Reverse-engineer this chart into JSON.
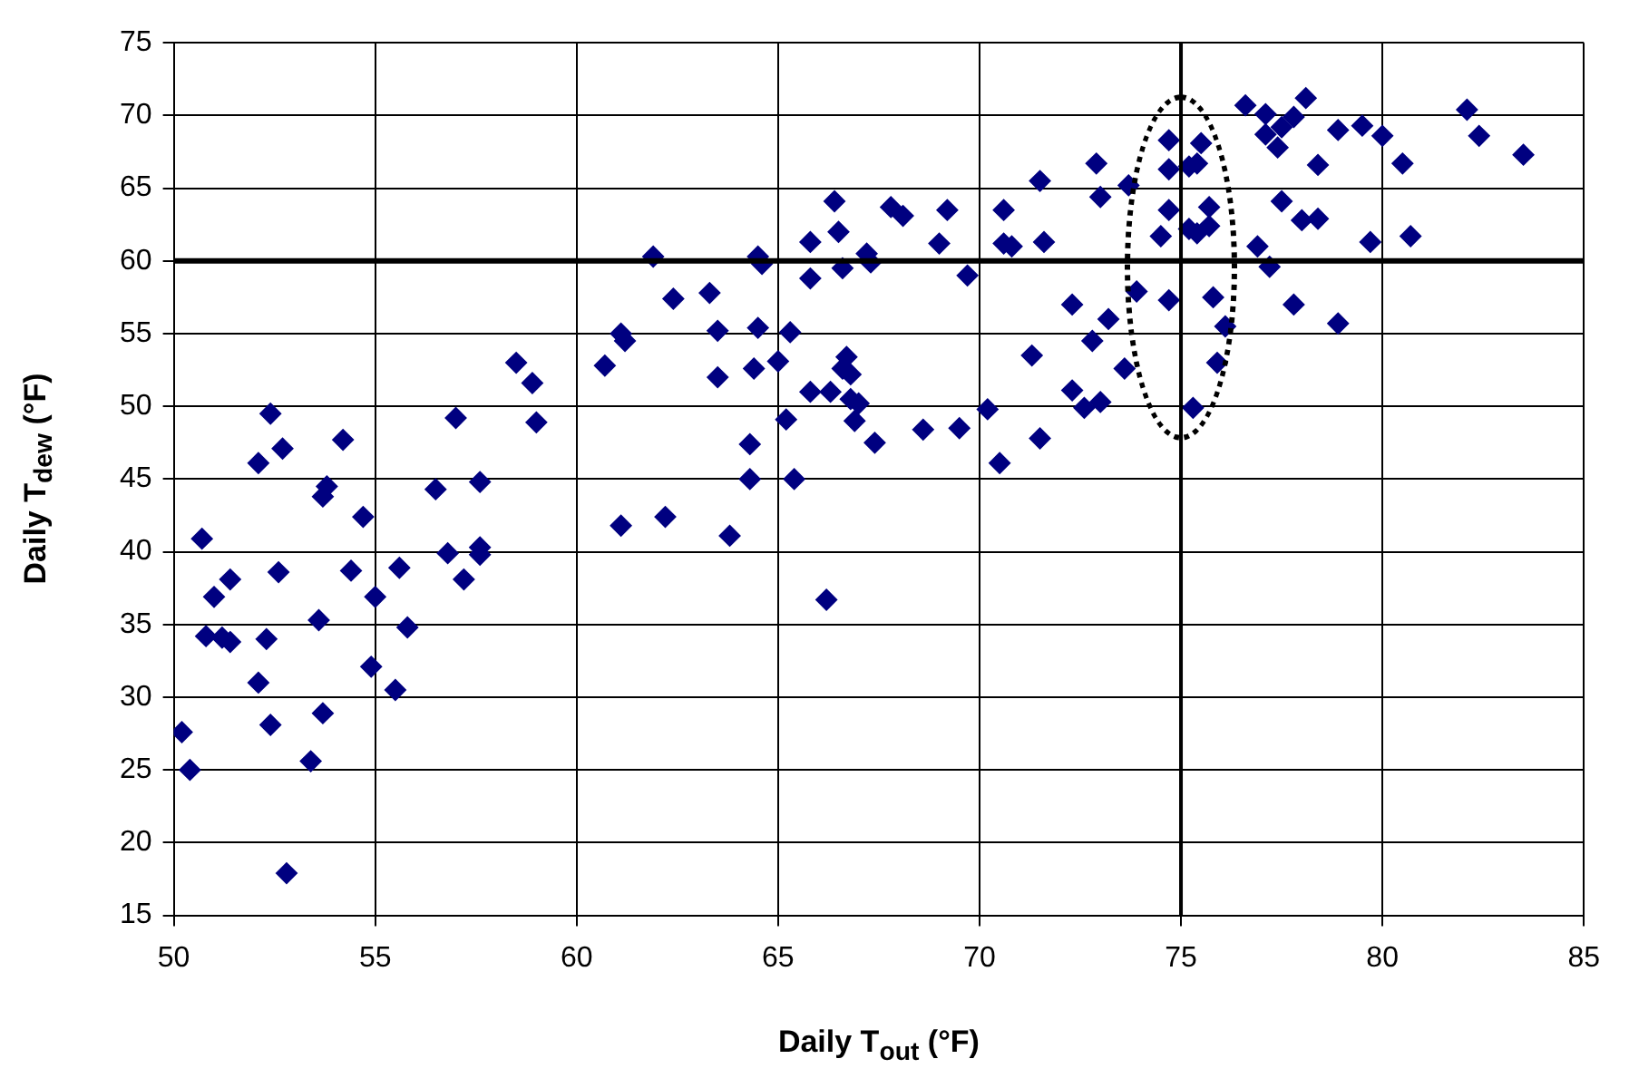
{
  "chart_data": {
    "type": "scatter",
    "xlabel": "Daily T$_{out}$  (°F)",
    "ylabel": "Daily T$_{dew}$  (°F)",
    "xlim": [
      50,
      85
    ],
    "xticks": [
      50,
      55,
      60,
      65,
      70,
      75,
      80,
      85
    ],
    "ylim": [
      15,
      75
    ],
    "yticks": [
      15,
      20,
      25,
      30,
      35,
      40,
      45,
      50,
      55,
      60,
      65,
      70,
      75
    ],
    "grid": true,
    "legend": false,
    "marker": "diamond",
    "ref_lines": [
      {
        "axis": "y",
        "value": 60,
        "color": "#000000"
      },
      {
        "axis": "x",
        "value": 75,
        "color": "#000000"
      }
    ],
    "series": [
      {
        "color": "#000080",
        "x": [
          50.2,
          50.4,
          50.7,
          50.8,
          51.0,
          51.2,
          51.4,
          51.4,
          52.1,
          52.1,
          52.3,
          52.4,
          52.4,
          52.6,
          52.7,
          52.8,
          53.4,
          53.6,
          53.7,
          53.7,
          53.8,
          54.2,
          54.4,
          54.7,
          54.9,
          55.0,
          55.5,
          55.6,
          55.8,
          56.5,
          56.8,
          57.0,
          57.2,
          57.6,
          57.6,
          57.6,
          58.5,
          58.9,
          59.0,
          60.7,
          61.1,
          61.2,
          61.1,
          61.9,
          62.2,
          62.4,
          63.3,
          63.5,
          63.5,
          63.8,
          64.4,
          64.5,
          64.3,
          64.3,
          64.5,
          64.6,
          65.0,
          65.3,
          65.2,
          65.4,
          66.2,
          65.8,
          65.8,
          65.8,
          66.3,
          66.4,
          66.5,
          66.6,
          66.7,
          66.6,
          66.8,
          66.8,
          67.0,
          66.9,
          67.2,
          67.3,
          67.4,
          67.8,
          68.1,
          68.6,
          69.0,
          69.2,
          69.7,
          69.5,
          70.2,
          70.5,
          70.6,
          70.6,
          70.8,
          71.3,
          71.5,
          71.5,
          71.6,
          72.3,
          72.3,
          72.6,
          73.0,
          72.8,
          73.2,
          72.9,
          73.0,
          73.6,
          73.7,
          73.9,
          74.5,
          74.7,
          74.7,
          74.7,
          74.7,
          75.2,
          75.4,
          75.5,
          75.2,
          75.4,
          75.7,
          75.7,
          75.8,
          76.1,
          75.9,
          75.3,
          76.9,
          77.2,
          76.6,
          77.1,
          77.1,
          77.5,
          77.8,
          77.4,
          78.1,
          77.5,
          78.0,
          78.4,
          78.4,
          77.8,
          78.9,
          78.9,
          79.5,
          79.7,
          80.0,
          80.5,
          80.7,
          82.1,
          82.4,
          83.5
        ],
        "values": [
          27.6,
          25.0,
          40.9,
          34.2,
          36.9,
          34.1,
          33.8,
          38.1,
          46.1,
          31.0,
          34.0,
          28.1,
          49.5,
          38.6,
          47.1,
          17.9,
          25.6,
          35.3,
          43.8,
          28.9,
          44.5,
          47.7,
          38.7,
          42.4,
          32.1,
          36.9,
          30.5,
          38.9,
          34.8,
          44.3,
          39.9,
          49.2,
          38.1,
          40.3,
          39.8,
          44.8,
          53.0,
          51.6,
          48.9,
          52.8,
          55.0,
          54.5,
          41.8,
          60.3,
          42.4,
          57.4,
          57.8,
          55.2,
          52.0,
          41.1,
          52.6,
          55.4,
          47.4,
          45.0,
          60.3,
          59.8,
          53.1,
          55.1,
          49.1,
          45.0,
          36.7,
          61.3,
          58.8,
          51.0,
          51.0,
          64.1,
          62.0,
          59.5,
          53.4,
          52.6,
          52.2,
          50.5,
          50.2,
          49.0,
          60.5,
          59.9,
          47.5,
          63.7,
          63.1,
          48.4,
          61.2,
          63.5,
          59.0,
          48.5,
          49.8,
          46.1,
          63.5,
          61.2,
          61.0,
          53.5,
          47.8,
          65.5,
          61.3,
          57.0,
          51.1,
          49.9,
          50.3,
          54.5,
          56.0,
          66.7,
          64.4,
          52.6,
          65.2,
          57.9,
          61.7,
          68.3,
          66.3,
          63.5,
          57.3,
          66.5,
          66.7,
          68.1,
          62.2,
          61.9,
          63.7,
          62.4,
          57.5,
          55.5,
          53.0,
          49.9,
          61.0,
          59.6,
          70.7,
          70.1,
          68.7,
          69.2,
          69.9,
          67.8,
          71.2,
          64.1,
          62.8,
          62.9,
          66.6,
          57.0,
          69.0,
          55.7,
          69.3,
          61.3,
          68.6,
          66.7,
          61.7,
          70.4,
          68.6,
          67.3
        ]
      }
    ]
  }
}
